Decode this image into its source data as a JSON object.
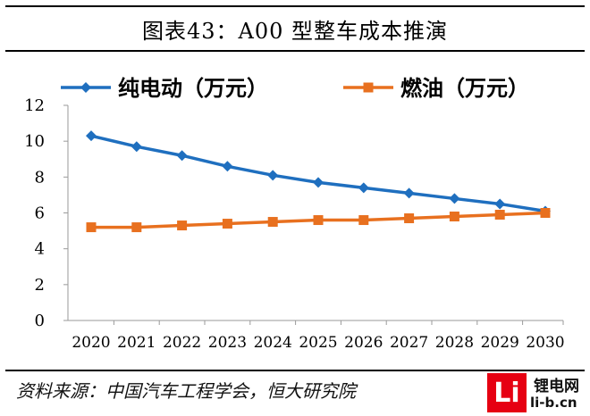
{
  "title": "图表43：A00 型整车成本推演",
  "source": "资料来源：中国汽车工程学会，恒大研究院",
  "logo": {
    "mark": "Li",
    "name": "锂电网",
    "url": "li-b.cn"
  },
  "chart_data": {
    "type": "line",
    "title": "图表43：A00 型整车成本推演",
    "xlabel": "",
    "ylabel": "",
    "x": [
      "2020",
      "2021",
      "2022",
      "2023",
      "2024",
      "2025",
      "2026",
      "2027",
      "2028",
      "2029",
      "2030"
    ],
    "ylim": [
      0,
      12
    ],
    "yticks": [
      0,
      2,
      4,
      6,
      8,
      10,
      12
    ],
    "grid": false,
    "legend_position": "top",
    "series": [
      {
        "name": "纯电动（万元）",
        "color": "#1f6fbf",
        "marker": "diamond",
        "values": [
          10.3,
          9.7,
          9.2,
          8.6,
          8.1,
          7.7,
          7.4,
          7.1,
          6.8,
          6.5,
          6.1
        ]
      },
      {
        "name": "燃油（万元）",
        "color": "#e8701f",
        "marker": "square",
        "values": [
          5.2,
          5.2,
          5.3,
          5.4,
          5.5,
          5.6,
          5.6,
          5.7,
          5.8,
          5.9,
          6.0
        ]
      }
    ]
  }
}
